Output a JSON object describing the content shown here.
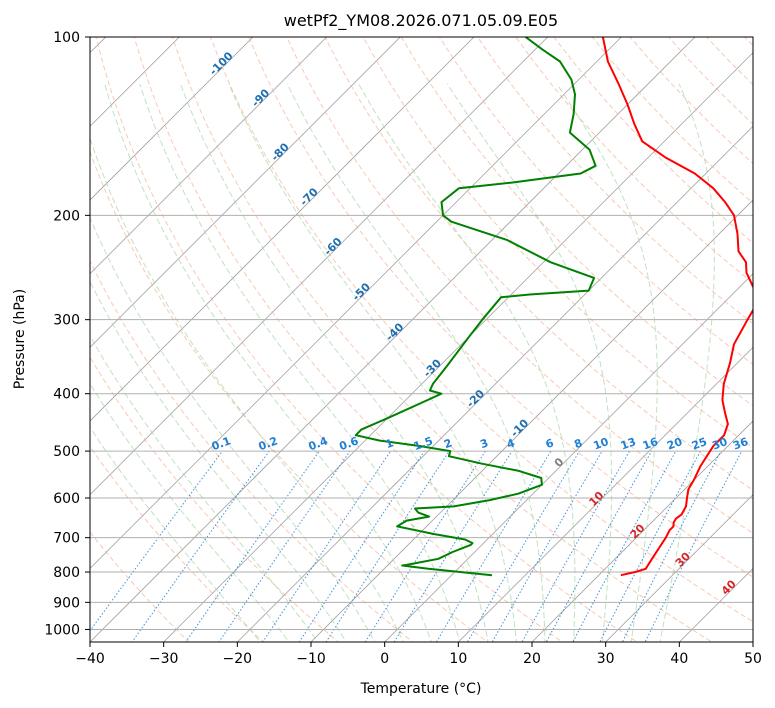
{
  "chart_data": {
    "type": "line",
    "chart_kind": "skew-T log-P diagram",
    "title": "wetPf2_YM08.2026.071.05.09.E05",
    "xlabel": "Temperature (°C)",
    "ylabel": "Pressure (hPa)",
    "xlim": [
      -40,
      50
    ],
    "ylim": [
      1050,
      100
    ],
    "y_scale": "log",
    "grid": true,
    "x_ticks": [
      "−40",
      "−30",
      "−20",
      "−10",
      "0",
      "10",
      "20",
      "30",
      "40",
      "50"
    ],
    "x_tick_values": [
      -40,
      -30,
      -20,
      -10,
      0,
      10,
      20,
      30,
      40,
      50
    ],
    "y_ticks": [
      "100",
      "200",
      "300",
      "400",
      "500",
      "600",
      "700",
      "800",
      "900",
      "1000"
    ],
    "y_tick_values": [
      100,
      200,
      300,
      400,
      500,
      600,
      700,
      800,
      900,
      1000
    ],
    "colors": {
      "temperature": "#ff0000",
      "dewpoint": "#008000",
      "isotherm": "#888888",
      "dry_adiabat": "#f4a582",
      "moist_adiabat": "#a6d4a6",
      "mixing_ratio": "#1f7fd4",
      "isotherm_label_cold": "#1f6fb0",
      "isotherm_label_warm": "#d62728",
      "isotherm_label_zero": "#808080"
    },
    "series": [
      {
        "key": "temperature",
        "points": [
          [
            23,
            810
          ],
          [
            24.5,
            800
          ],
          [
            25.5,
            790
          ],
          [
            25,
            760
          ],
          [
            24.5,
            730
          ],
          [
            24,
            700
          ],
          [
            23.5,
            680
          ],
          [
            23.5,
            670
          ],
          [
            23,
            660
          ],
          [
            22.8,
            650
          ],
          [
            23,
            640
          ],
          [
            22.5,
            620
          ],
          [
            21.5,
            600
          ],
          [
            20.5,
            580
          ],
          [
            20,
            560
          ],
          [
            19,
            530
          ],
          [
            18.5,
            510
          ],
          [
            18,
            490
          ],
          [
            18,
            470
          ],
          [
            17,
            450
          ],
          [
            15,
            430
          ],
          [
            13,
            410
          ],
          [
            11,
            385
          ],
          [
            9,
            355
          ],
          [
            7,
            330
          ],
          [
            5.5,
            300
          ],
          [
            4.5,
            280
          ],
          [
            2,
            265
          ],
          [
            -1,
            250
          ],
          [
            -2.5,
            240
          ],
          [
            -5,
            230
          ],
          [
            -7.5,
            215
          ],
          [
            -10.5,
            200
          ],
          [
            -13.5,
            190
          ],
          [
            -17,
            180
          ],
          [
            -21.5,
            170
          ],
          [
            -27.5,
            160
          ],
          [
            -33,
            150
          ],
          [
            -36.5,
            140
          ],
          [
            -40,
            130
          ],
          [
            -44,
            120
          ],
          [
            -48.5,
            110
          ],
          [
            -52.5,
            100
          ]
        ]
      },
      {
        "key": "dewpoint",
        "points": [
          [
            5.5,
            810
          ],
          [
            -4,
            790
          ],
          [
            -8,
            780
          ],
          [
            -7.5,
            778
          ],
          [
            -4,
            760
          ],
          [
            -3,
            740
          ],
          [
            -1.5,
            720
          ],
          [
            -1.5,
            715
          ],
          [
            -3,
            705
          ],
          [
            -8,
            690
          ],
          [
            -11,
            680
          ],
          [
            -14,
            670
          ],
          [
            -13.5,
            655
          ],
          [
            -11,
            645
          ],
          [
            -13,
            635
          ],
          [
            -14,
            625
          ],
          [
            -9,
            620
          ],
          [
            -5,
            605
          ],
          [
            -2,
            590
          ],
          [
            0,
            570
          ],
          [
            -1,
            555
          ],
          [
            -5,
            540
          ],
          [
            -11,
            525
          ],
          [
            -16.5,
            510
          ],
          [
            -17,
            500
          ],
          [
            -22,
            490
          ],
          [
            -28,
            480
          ],
          [
            -32,
            470
          ],
          [
            -32,
            460
          ],
          [
            -30,
            440
          ],
          [
            -27,
            410
          ],
          [
            -26,
            400
          ],
          [
            -28,
            395
          ],
          [
            -28.5,
            385
          ],
          [
            -29,
            360
          ],
          [
            -30,
            320
          ],
          [
            -30.5,
            300
          ],
          [
            -31,
            275
          ],
          [
            -27.5,
            272
          ],
          [
            -20,
            268
          ],
          [
            -21,
            255
          ],
          [
            -29,
            240
          ],
          [
            -38,
            220
          ],
          [
            -48,
            205
          ],
          [
            -50,
            200
          ],
          [
            -52,
            190
          ],
          [
            -51.5,
            180
          ],
          [
            -45,
            176
          ],
          [
            -37,
            170
          ],
          [
            -36,
            165
          ],
          [
            -39,
            155
          ],
          [
            -44,
            145
          ],
          [
            -46,
            135
          ],
          [
            -48.5,
            125
          ],
          [
            -51,
            118
          ],
          [
            -55,
            110
          ],
          [
            -59,
            105
          ],
          [
            -63,
            100
          ]
        ]
      }
    ],
    "isotherm_labels": [
      {
        "text": "-100",
        "t": -100,
        "p": 112
      },
      {
        "text": "-90",
        "t": -90,
        "p": 128
      },
      {
        "text": "-80",
        "t": -80,
        "p": 158
      },
      {
        "text": "-70",
        "t": -70,
        "p": 188
      },
      {
        "text": "-60",
        "t": -60,
        "p": 228
      },
      {
        "text": "-50",
        "t": -50,
        "p": 272
      },
      {
        "text": "-40",
        "t": -40,
        "p": 318
      },
      {
        "text": "-30",
        "t": -30,
        "p": 366
      },
      {
        "text": "-20",
        "t": -20,
        "p": 412
      },
      {
        "text": "-10",
        "t": -10,
        "p": 462
      },
      {
        "text": "0",
        "t": 0,
        "p": 528
      },
      {
        "text": "10",
        "t": 10,
        "p": 608
      },
      {
        "text": "20",
        "t": 20,
        "p": 690
      },
      {
        "text": "30",
        "t": 30,
        "p": 770
      },
      {
        "text": "40",
        "t": 40,
        "p": 858
      }
    ],
    "mixing_ratio_labels": [
      "0.1",
      "0.2",
      "0.4",
      "0.6",
      "1",
      "1.5",
      "2",
      "3",
      "4",
      "6",
      "8",
      "10",
      "13",
      "16",
      "20",
      "25",
      "30",
      "36"
    ],
    "mixing_ratio_values": [
      0.1,
      0.2,
      0.4,
      0.6,
      1,
      1.5,
      2,
      3,
      4,
      6,
      8,
      10,
      13,
      16,
      20,
      25,
      30,
      36
    ],
    "mixing_ratio_label_pressure": 500
  }
}
